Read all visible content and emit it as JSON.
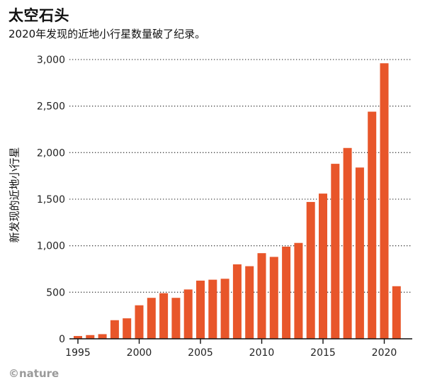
{
  "header": {
    "title": "太空石头",
    "subtitle": "2020年发现的近地小行星数量破了纪录。"
  },
  "credit": "©nature",
  "chart_data": {
    "type": "bar",
    "title": "太空石头",
    "subtitle": "2020年发现的近地小行星数量破了纪录。",
    "xlabel": "",
    "ylabel": "新发现的近地小行星",
    "categories": [
      1995,
      1996,
      1997,
      1998,
      1999,
      2000,
      2001,
      2002,
      2003,
      2004,
      2005,
      2006,
      2007,
      2008,
      2009,
      2010,
      2011,
      2012,
      2013,
      2014,
      2015,
      2016,
      2017,
      2018,
      2019,
      2020,
      2021
    ],
    "values": [
      30,
      40,
      50,
      200,
      220,
      360,
      440,
      490,
      440,
      530,
      625,
      635,
      645,
      800,
      780,
      920,
      880,
      990,
      1030,
      1470,
      1560,
      1880,
      2050,
      1840,
      2440,
      2960,
      565
    ],
    "ylim": [
      0,
      3000
    ],
    "yticks": [
      0,
      500,
      1000,
      1500,
      2000,
      2500,
      3000
    ],
    "ytick_labels": [
      "0",
      "500",
      "1,000",
      "1,500",
      "2,000",
      "2,500",
      "3,000"
    ],
    "xticks": [
      1995,
      2000,
      2005,
      2010,
      2015,
      2020
    ],
    "xtick_labels": [
      "1995",
      "2000",
      "2005",
      "2010",
      "2015",
      "2020"
    ],
    "grid": true,
    "bar_color": "#e8562a"
  }
}
